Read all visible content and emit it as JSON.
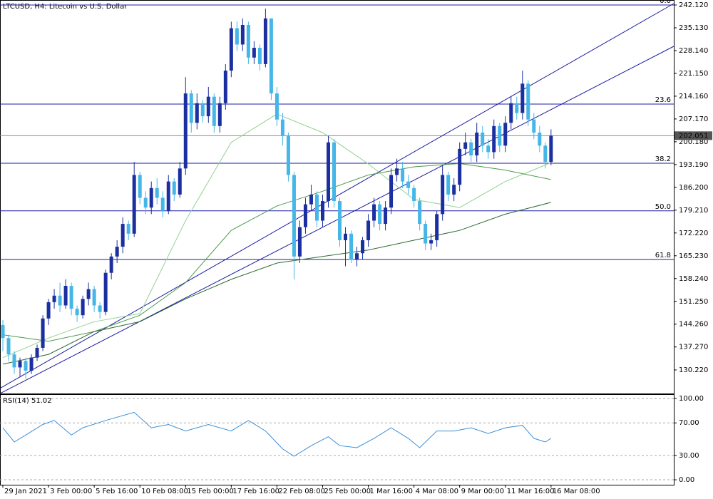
{
  "chart_data": [
    {
      "type": "candlestick",
      "title": "LTCUSD, H4: Litecoin vs U.S. Dollar",
      "up_color": "#1c2fa0",
      "down_color": "#45b6e8",
      "xlim": [
        -0.5,
        117.5
      ],
      "ylim": [
        123.0,
        243.65
      ],
      "yticks": [
        {
          "value": 242.12,
          "label": "242.120"
        },
        {
          "value": 235.13,
          "label": "235.130"
        },
        {
          "value": 228.14,
          "label": "228.140"
        },
        {
          "value": 221.15,
          "label": "221.150"
        },
        {
          "value": 214.16,
          "label": "214.160"
        },
        {
          "value": 207.17,
          "label": "207.170"
        },
        {
          "value": 200.18,
          "label": "200.180"
        },
        {
          "value": 193.19,
          "label": "193.190"
        },
        {
          "value": 186.2,
          "label": "186.200"
        },
        {
          "value": 179.21,
          "label": "179.210"
        },
        {
          "value": 172.22,
          "label": "172.220"
        },
        {
          "value": 165.23,
          "label": "165.230"
        },
        {
          "value": 158.24,
          "label": "158.240"
        },
        {
          "value": 151.25,
          "label": "151.250"
        },
        {
          "value": 144.26,
          "label": "144.260"
        },
        {
          "value": 137.27,
          "label": "137.270"
        },
        {
          "value": 130.22,
          "label": "130.220"
        }
      ],
      "open": [
        144,
        140,
        135,
        131,
        133,
        130,
        134,
        137,
        146,
        151,
        153,
        150,
        156,
        149,
        147,
        152,
        155,
        150,
        148,
        160,
        165,
        168,
        175,
        172,
        190,
        183,
        180,
        186,
        183,
        179,
        188,
        184,
        192,
        215,
        206,
        212,
        208,
        214,
        205,
        212,
        222,
        235,
        230,
        236,
        226,
        229,
        224,
        238,
        215,
        207,
        202,
        190,
        165,
        174,
        181,
        184,
        176,
        182,
        200,
        182,
        170,
        172,
        164,
        166,
        170,
        176,
        181,
        175,
        180,
        190,
        192,
        188,
        186,
        182,
        175,
        169,
        170,
        178,
        190,
        184,
        187,
        198,
        200,
        196,
        203,
        199,
        197,
        205,
        199,
        206,
        212,
        209,
        218,
        207,
        203,
        199,
        194
      ],
      "high": [
        145.5,
        141,
        136,
        134,
        134,
        135,
        138,
        147,
        152,
        155,
        157,
        158,
        157,
        150,
        153,
        157,
        156,
        151,
        161,
        166,
        170,
        177,
        176,
        194,
        191,
        185,
        188,
        189,
        185,
        190,
        189,
        194,
        220,
        216,
        215,
        213,
        217,
        215,
        214,
        224,
        237,
        237,
        238,
        237,
        231,
        230,
        241,
        238,
        217,
        209,
        203,
        191,
        176,
        183,
        187,
        185,
        184,
        202,
        201,
        183,
        174,
        173,
        168,
        171,
        178,
        183,
        182,
        182,
        192,
        195,
        194,
        190,
        187,
        183,
        176,
        172,
        179,
        193,
        191,
        189,
        200,
        203,
        201,
        206,
        205,
        201,
        207,
        206,
        208,
        214,
        214,
        222,
        219,
        209,
        205,
        200,
        204
      ],
      "low": [
        136,
        133,
        129,
        128,
        127.5,
        129,
        133,
        136,
        144,
        149,
        148,
        149,
        147,
        145,
        146,
        150,
        148,
        146,
        147,
        158,
        163,
        166,
        170,
        171,
        181,
        178,
        178,
        181,
        177,
        178,
        182,
        183,
        190,
        203,
        204,
        206,
        206,
        203,
        203,
        210,
        220,
        228,
        228,
        224,
        224,
        222,
        223,
        213,
        205,
        199,
        188,
        158,
        163,
        172,
        179,
        174,
        174,
        180,
        180,
        168,
        162,
        163,
        162,
        164,
        168,
        174,
        173,
        173,
        178,
        188,
        186,
        184,
        180,
        173,
        167,
        167,
        168,
        176,
        182,
        182,
        185,
        196,
        194,
        194,
        197,
        195,
        195,
        197,
        197,
        204,
        207,
        207,
        205,
        201,
        197,
        192,
        193
      ],
      "close": [
        140,
        135,
        131,
        133,
        130,
        134,
        137,
        146,
        151,
        153,
        150,
        156,
        149,
        147,
        152,
        155,
        150,
        148,
        160,
        165,
        168,
        175,
        172,
        190,
        183,
        180,
        186,
        183,
        179,
        188,
        184,
        192,
        215,
        206,
        212,
        208,
        214,
        205,
        212,
        222,
        235,
        230,
        236,
        226,
        229,
        224,
        238,
        215,
        207,
        202,
        190,
        165,
        174,
        181,
        184,
        176,
        182,
        200,
        182,
        170,
        172,
        164,
        166,
        170,
        176,
        181,
        175,
        180,
        190,
        192,
        188,
        186,
        182,
        175,
        169,
        170,
        178,
        190,
        184,
        187,
        198,
        200,
        196,
        203,
        199,
        197,
        205,
        199,
        206,
        212,
        209,
        218,
        207,
        203,
        199,
        194,
        202.051
      ],
      "current_price": {
        "value": 202.051,
        "label": "202.051"
      },
      "moving_averages": [
        {
          "color": "#93d193",
          "x": [
            0,
            8,
            16,
            24,
            32,
            40,
            48,
            56,
            64,
            72,
            80,
            88,
            96
          ],
          "values": [
            134,
            140,
            145,
            147.5,
            176,
            200,
            208.7,
            203,
            193.4,
            182.5,
            180,
            188,
            193.8
          ]
        },
        {
          "color": "#4c9a4c",
          "x": [
            0,
            8,
            16,
            24,
            32,
            40,
            48,
            56,
            64,
            72,
            80,
            88,
            96
          ],
          "values": [
            141,
            139,
            142,
            147,
            157,
            173,
            180.5,
            185,
            190,
            192.5,
            193.5,
            191.5,
            188.6
          ]
        },
        {
          "color": "#2e6b2e",
          "x": [
            0,
            8,
            16,
            24,
            32,
            40,
            48,
            56,
            64,
            72,
            80,
            88,
            96
          ],
          "values": [
            132,
            135,
            142,
            145,
            152,
            158,
            163,
            165,
            167,
            170,
            173,
            178,
            181.6
          ]
        }
      ],
      "trendline_color": "#1a1aa0",
      "trendlines": [
        {
          "x": [
            -0.5,
            117.5
          ],
          "values": [
            124.6,
            242.55
          ]
        },
        {
          "x": [
            -0.5,
            117.5
          ],
          "values": [
            123.0,
            229.45
          ]
        }
      ],
      "fib_levels": [
        {
          "label": "0.0",
          "price": 242.12
        },
        {
          "label": "23.6",
          "price": 211.75
        },
        {
          "label": "38.2",
          "price": 193.6
        },
        {
          "label": "50.0",
          "price": 179.0
        },
        {
          "label": "61.8",
          "price": 164.1
        }
      ]
    },
    {
      "type": "line",
      "title": "RSI(14) 51.02",
      "color": "#3c8fd6",
      "xlim": [
        -0.5,
        117.5
      ],
      "ylim": [
        -6.1,
        105.3
      ],
      "yticks": [
        {
          "value": 100,
          "label": "100.00"
        },
        {
          "value": 70,
          "label": "70.00"
        },
        {
          "value": 30,
          "label": "30.00"
        },
        {
          "value": 0,
          "label": "0.00"
        }
      ],
      "grid": true,
      "x": [
        0,
        2,
        4,
        7,
        9,
        12,
        14,
        18,
        23,
        26,
        29,
        32,
        36,
        40,
        43,
        46,
        49,
        51,
        54,
        57,
        59,
        62,
        65,
        68,
        71,
        73,
        76,
        79,
        82,
        85,
        88,
        91,
        93,
        95,
        96
      ],
      "values": [
        64,
        46.5,
        55,
        68,
        73,
        55,
        64,
        73,
        83,
        64,
        68,
        60,
        68,
        60,
        73,
        60,
        38,
        29,
        42,
        53,
        42,
        39.5,
        51,
        64,
        51,
        39.5,
        60,
        60,
        64,
        57,
        64,
        67,
        51,
        46.5,
        51.02
      ],
      "xticks": [
        {
          "value": 0,
          "label": "29 Jan 2021"
        },
        {
          "value": 8,
          "label": "3 Feb 00:00"
        },
        {
          "value": 16,
          "label": "5 Feb 16:00"
        },
        {
          "value": 24,
          "label": "10 Feb 08:00"
        },
        {
          "value": 32,
          "label": "15 Feb 00:00"
        },
        {
          "value": 40,
          "label": "17 Feb 16:00"
        },
        {
          "value": 48,
          "label": "22 Feb 08:00"
        },
        {
          "value": 56,
          "label": "25 Feb 00:00"
        },
        {
          "value": 64,
          "label": "1 Mar 16:00"
        },
        {
          "value": 72,
          "label": "4 Mar 08:00"
        },
        {
          "value": 80,
          "label": "9 Mar 00:00"
        },
        {
          "value": 88,
          "label": "11 Mar 16:00"
        },
        {
          "value": 96,
          "label": "16 Mar 08:00"
        }
      ]
    }
  ]
}
